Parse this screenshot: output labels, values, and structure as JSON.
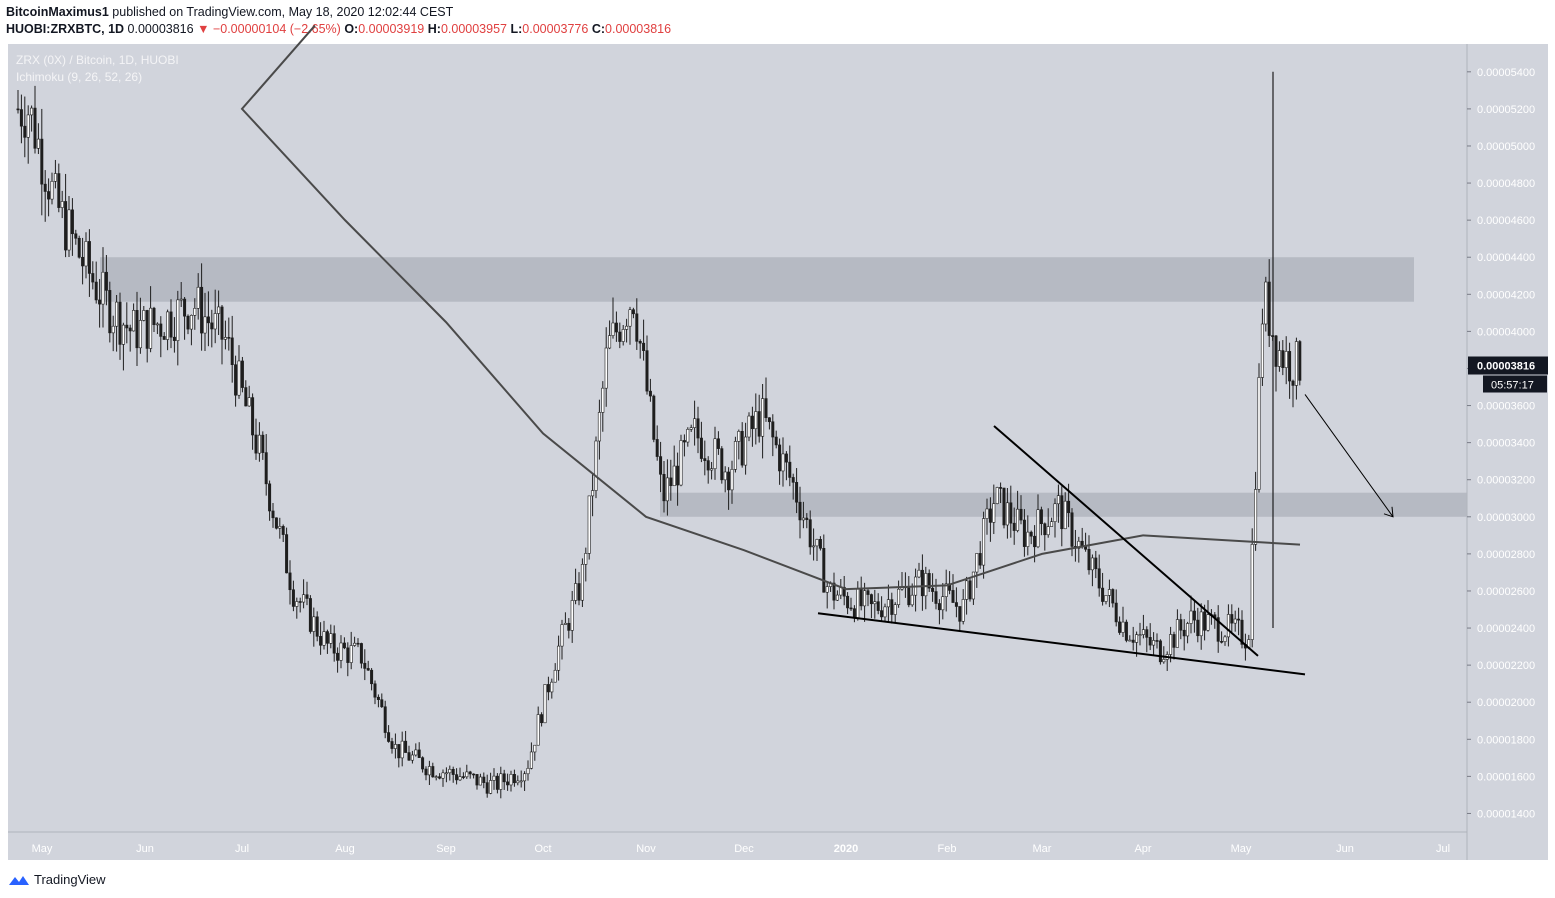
{
  "header": {
    "author": "BitcoinMaximus1",
    "published": "published on TradingView.com, May 18, 2020 12:02:44 CEST",
    "symbol": "HUOBI:ZRXBTC, 1D",
    "price": "0.00003816",
    "change": "−0.00000104 (−2.65%)",
    "open_label": "O:",
    "open": "0.00003919",
    "high_label": "H:",
    "high": "0.00003957",
    "low_label": "L:",
    "low": "0.00003776",
    "close_label": "C:",
    "close": "0.00003816"
  },
  "overlay": {
    "series": "ZRX (0X) / Bitcoin, 1D, HUOBI",
    "indicator": "Ichimoku (9, 26, 52, 26)"
  },
  "footer": {
    "brand": "TradingView"
  },
  "colors": {
    "background": "#d1d4dc",
    "candle": "#1e1e1e",
    "zone": "#b2b5be",
    "ma": "#4a4a4a"
  },
  "chart_data": {
    "type": "candlestick",
    "y_axis_ticks": [
      "0.00001400",
      "0.00001600",
      "0.00001800",
      "0.00002000",
      "0.00002200",
      "0.00002400",
      "0.00002600",
      "0.00002800",
      "0.00003000",
      "0.00003200",
      "0.00003400",
      "0.00003600",
      "0.00003800",
      "0.00004000",
      "0.00004200",
      "0.00004400",
      "0.00004600",
      "0.00004800",
      "0.00005000",
      "0.00005200",
      "0.00005400"
    ],
    "y_min": 1.3e-05,
    "y_max": 5.55e-05,
    "x_axis_ticks": [
      "May",
      "Jun",
      "Jul",
      "Aug",
      "Sep",
      "Oct",
      "Nov",
      "Dec",
      "2020",
      "Feb",
      "Mar",
      "Apr",
      "May",
      "Jun",
      "Jul"
    ],
    "last_price_label": "0.00003816",
    "countdown_label": "05:57:17",
    "resistance_zones": [
      {
        "low": 4.16e-05,
        "high": 4.4e-05
      },
      {
        "low": 3e-05,
        "high": 3.13e-05
      }
    ],
    "close_path": [
      [
        "May",
        5.2e-05
      ],
      [
        "May",
        4.7e-05
      ],
      [
        "May",
        4.4e-05
      ],
      [
        "May",
        4.15e-05
      ],
      [
        "May",
        4e-05
      ],
      [
        "Jun",
        4.05e-05
      ],
      [
        "Jun",
        4.15e-05
      ],
      [
        "Jun",
        3.95e-05
      ],
      [
        "Jul",
        3.35e-05
      ],
      [
        "Jul",
        2.6e-05
      ],
      [
        "Jul",
        2.3e-05
      ],
      [
        "Aug",
        2.25e-05
      ],
      [
        "Aug",
        1.75e-05
      ],
      [
        "Aug",
        1.65e-05
      ],
      [
        "Sep",
        1.6e-05
      ],
      [
        "Sep",
        1.55e-05
      ],
      [
        "Sep",
        1.65e-05
      ],
      [
        "Oct",
        2.25e-05
      ],
      [
        "Oct",
        2.65e-05
      ],
      [
        "Oct",
        3.9e-05
      ],
      [
        "Oct",
        4.2e-05
      ],
      [
        "Nov",
        3.1e-05
      ],
      [
        "Nov",
        3.45e-05
      ],
      [
        "Nov",
        3.25e-05
      ],
      [
        "Dec",
        3.55e-05
      ],
      [
        "Dec",
        3.15e-05
      ],
      [
        "Dec",
        2.6e-05
      ],
      [
        "2020",
        2.5e-05
      ],
      [
        "2020",
        2.65e-05
      ],
      [
        "Feb",
        2.5e-05
      ],
      [
        "Feb",
        3.1e-05
      ],
      [
        "Feb",
        2.9e-05
      ],
      [
        "Mar",
        3.05e-05
      ],
      [
        "Mar",
        2.7e-05
      ],
      [
        "Mar",
        2.4e-05
      ],
      [
        "Apr",
        2.28e-05
      ],
      [
        "Apr",
        2.45e-05
      ],
      [
        "Apr",
        2.4e-05
      ],
      [
        "May",
        2.35e-05
      ],
      [
        "May",
        4.2e-05
      ],
      [
        "May",
        3.9e-05
      ],
      [
        "May",
        3.82e-05
      ]
    ],
    "moving_average": [
      [
        "Jun",
        5.65e-05
      ],
      [
        "Jul",
        5.2e-05
      ],
      [
        "Aug",
        4.6e-05
      ],
      [
        "Sep",
        4.05e-05
      ],
      [
        "Oct",
        3.45e-05
      ],
      [
        "Nov",
        3e-05
      ],
      [
        "Dec",
        2.82e-05
      ],
      [
        "2020",
        2.61e-05
      ],
      [
        "Feb",
        2.63e-05
      ],
      [
        "Mar",
        2.8e-05
      ],
      [
        "Apr",
        2.9e-05
      ],
      [
        "May",
        2.85e-05
      ]
    ],
    "trendlines": [
      {
        "from": [
          "Dec",
          2.48e-05
        ],
        "to": [
          "May",
          2.15e-05
        ]
      },
      {
        "from": [
          "Feb",
          3.49e-05
        ],
        "to": [
          "May",
          2.25e-05
        ]
      }
    ],
    "projection_arrow": {
      "from": [
        "May",
        3.66e-05
      ],
      "to": [
        "Jun",
        3e-05
      ]
    }
  }
}
